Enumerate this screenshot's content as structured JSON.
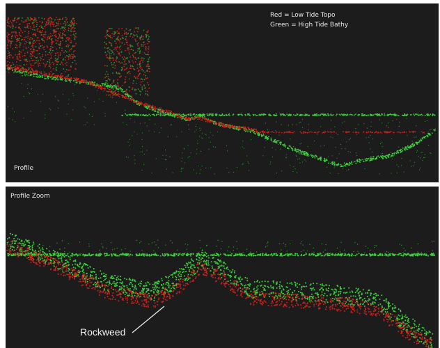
{
  "legend": {
    "red": "Red = Low Tide Topo",
    "green": "Green = High Tide Bathy"
  },
  "panels": [
    {
      "label": "Profile"
    },
    {
      "label": "Profile Zoom"
    }
  ],
  "annotation": "Rockweed"
}
